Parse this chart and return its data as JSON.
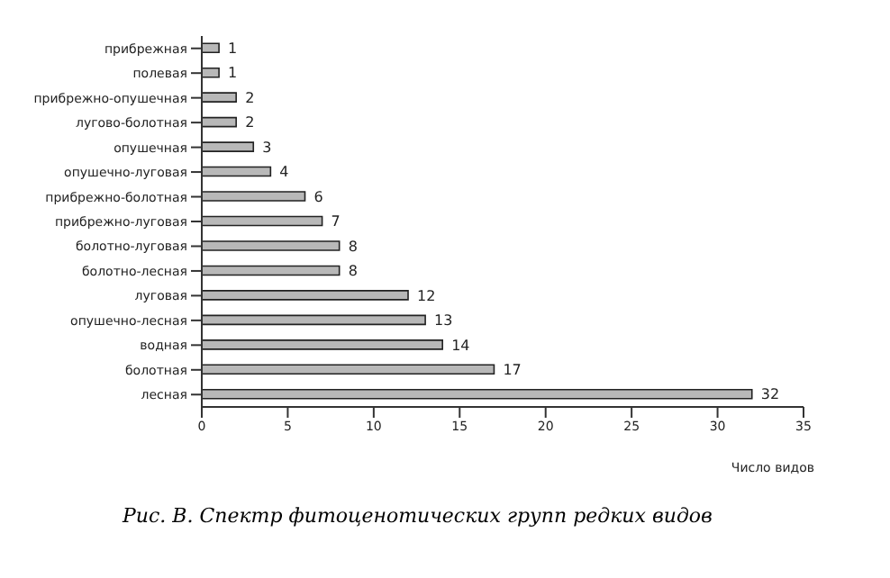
{
  "chart_data": {
    "type": "bar",
    "orientation": "horizontal",
    "categories": [
      "прибрежная",
      "полевая",
      "прибрежно-опушечная",
      "лугово-болотная",
      "опушечная",
      "опушечно-луговая",
      "прибрежно-болотная",
      "прибрежно-луговая",
      "болотно-луговая",
      "болотно-лесная",
      "луговая",
      "опушечно-лесная",
      "водная",
      "болотная",
      "лесная"
    ],
    "values": [
      1,
      1,
      2,
      2,
      3,
      4,
      6,
      7,
      8,
      8,
      12,
      13,
      14,
      17,
      32
    ],
    "color": "#b8b8b8",
    "xlim": [
      0,
      35
    ],
    "xticks": [
      0,
      5,
      10,
      15,
      20,
      25,
      30,
      35
    ],
    "xlabel": "Число видов",
    "data_labels": true,
    "annotations": [
      "Рис. В. Спектр фитоценотических групп редких видов"
    ]
  }
}
